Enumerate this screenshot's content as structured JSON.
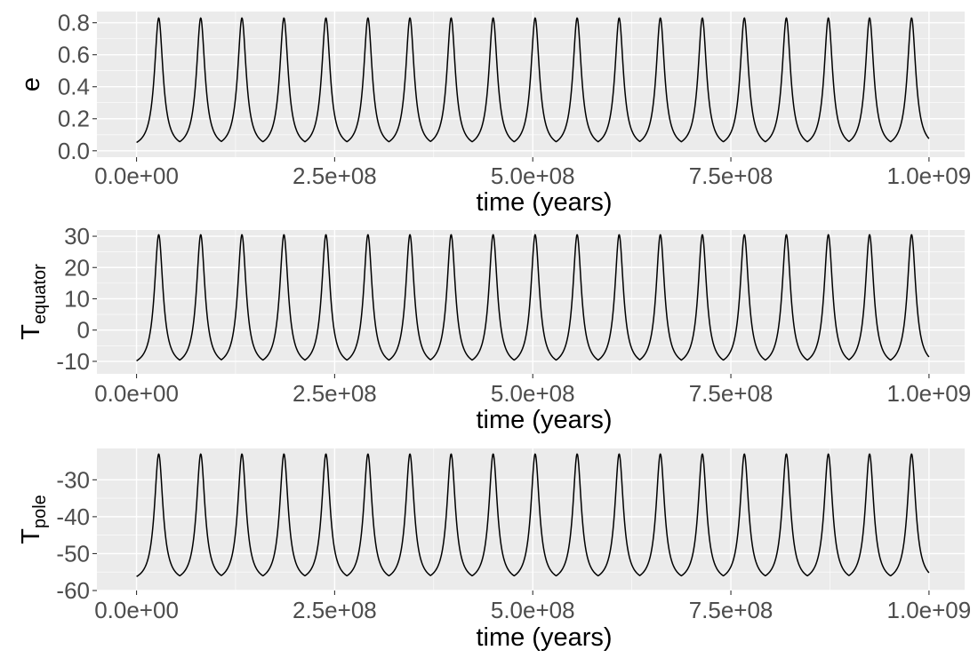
{
  "chart_data": [
    {
      "type": "line",
      "xlabel": "time (years)",
      "ylabel": "e",
      "ylabel_sub": "",
      "xlim": [
        -50000000,
        1045000000
      ],
      "ylim": [
        -0.04,
        0.87
      ],
      "x_ticks": [
        0,
        250000000,
        500000000,
        750000000,
        1000000000
      ],
      "x_tick_labels": [
        "0.0e+00",
        "2.5e+08",
        "5.0e+08",
        "7.5e+08",
        "1.0e+09"
      ],
      "y_ticks": [
        0.0,
        0.2,
        0.4,
        0.6,
        0.8
      ],
      "y_tick_labels": [
        "0.0",
        "0.2",
        "0.4",
        "0.6",
        "0.8"
      ],
      "grid": true,
      "baseline": 0.01,
      "peak": 0.83,
      "peak_times": [
        28000000,
        81000000,
        133000000,
        186000000,
        239000000,
        292000000,
        345000000,
        397000000,
        450000000,
        503000000,
        556000000,
        609000000,
        661000000,
        714000000,
        767000000,
        820000000,
        873000000,
        925000000,
        978000000
      ],
      "x_range": [
        0,
        1000000000
      ]
    },
    {
      "type": "line",
      "xlabel": "time (years)",
      "ylabel": "T",
      "ylabel_sub": "equator",
      "xlim": [
        -50000000,
        1045000000
      ],
      "ylim": [
        -14,
        32
      ],
      "x_ticks": [
        0,
        250000000,
        500000000,
        750000000,
        1000000000
      ],
      "x_tick_labels": [
        "0.0e+00",
        "2.5e+08",
        "5.0e+08",
        "7.5e+08",
        "1.0e+09"
      ],
      "y_ticks": [
        -10,
        0,
        10,
        20,
        30
      ],
      "y_tick_labels": [
        "-10",
        "0",
        "10",
        "20",
        "30"
      ],
      "grid": true,
      "baseline": -12,
      "peak": 30.5,
      "peak_times": [
        28000000,
        81000000,
        133000000,
        186000000,
        239000000,
        292000000,
        345000000,
        397000000,
        450000000,
        503000000,
        556000000,
        609000000,
        661000000,
        714000000,
        767000000,
        820000000,
        873000000,
        925000000,
        978000000
      ],
      "x_range": [
        0,
        1000000000
      ]
    },
    {
      "type": "line",
      "xlabel": "time (years)",
      "ylabel": "T",
      "ylabel_sub": "pole",
      "xlim": [
        -50000000,
        1045000000
      ],
      "ylim": [
        -60,
        -21.5
      ],
      "x_ticks": [
        0,
        250000000,
        500000000,
        750000000,
        1000000000
      ],
      "x_tick_labels": [
        "0.0e+00",
        "2.5e+08",
        "5.0e+08",
        "7.5e+08",
        "1.0e+09"
      ],
      "y_ticks": [
        -60,
        -50,
        -40,
        -30
      ],
      "y_tick_labels": [
        "-60",
        "-50",
        "-40",
        "-30"
      ],
      "grid": true,
      "baseline": -58,
      "peak": -23,
      "peak_times": [
        28000000,
        81000000,
        133000000,
        186000000,
        239000000,
        292000000,
        345000000,
        397000000,
        450000000,
        503000000,
        556000000,
        609000000,
        661000000,
        714000000,
        767000000,
        820000000,
        873000000,
        925000000,
        978000000
      ],
      "x_range": [
        0,
        1000000000
      ]
    }
  ]
}
